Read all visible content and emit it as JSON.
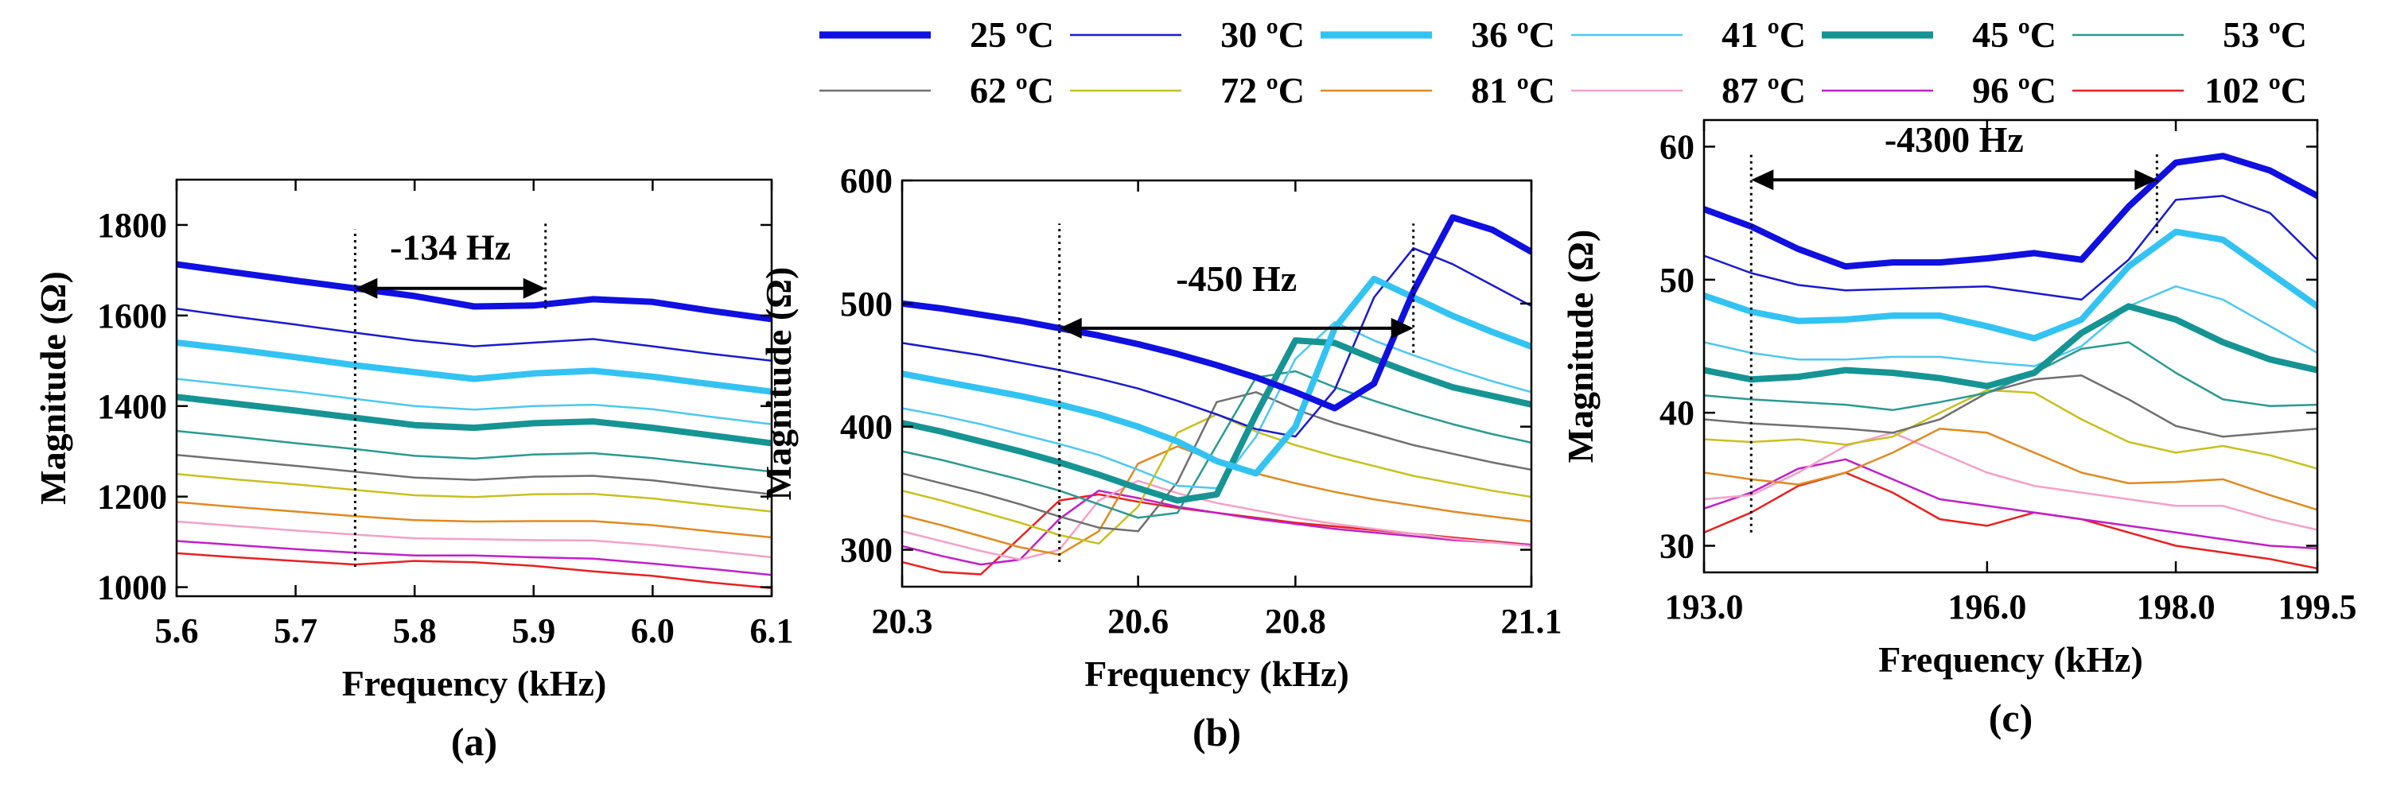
{
  "legend": {
    "position": "top",
    "entries": [
      {
        "label": "25 ºC",
        "color": "#1010e0",
        "weight": "thick"
      },
      {
        "label": "30 ºC",
        "color": "#1a1ad0",
        "weight": "thin"
      },
      {
        "label": "36 ºC",
        "color": "#33c3f2",
        "weight": "thick"
      },
      {
        "label": "41 ºC",
        "color": "#4cc8f0",
        "weight": "thin"
      },
      {
        "label": "45 ºC",
        "color": "#169494",
        "weight": "thick"
      },
      {
        "label": "53 ºC",
        "color": "#2a9a90",
        "weight": "thin"
      },
      {
        "label": "62 ºC",
        "color": "#707070",
        "weight": "thin"
      },
      {
        "label": "72 ºC",
        "color": "#c8c020",
        "weight": "thin"
      },
      {
        "label": "81 ºC",
        "color": "#e08a20",
        "weight": "thin"
      },
      {
        "label": "87 ºC",
        "color": "#f4a0c8",
        "weight": "thin"
      },
      {
        "label": "96 ºC",
        "color": "#c020c8",
        "weight": "thin"
      },
      {
        "label": "102 ºC",
        "color": "#e82020",
        "weight": "thin"
      }
    ]
  },
  "chart_data": [
    {
      "type": "line",
      "panel_label": "(a)",
      "xlabel": "Frequency (kHz)",
      "ylabel": "Magnitude (Ω)",
      "xlim": [
        5.6,
        6.1
      ],
      "ylim": [
        980,
        1900
      ],
      "xticks": [
        5.6,
        5.7,
        5.8,
        5.9,
        6.0,
        6.1
      ],
      "xtick_labels": [
        "5.6",
        "5.7",
        "5.8",
        "5.9",
        "6.0",
        "6.1"
      ],
      "yticks": [
        1000,
        1200,
        1400,
        1600,
        1800
      ],
      "ytick_labels": [
        "1000",
        "1200",
        "1400",
        "1600",
        "1800"
      ],
      "annotation": {
        "text": "-134 Hz",
        "x_from": 5.75,
        "x_to": 5.91,
        "y_arrow": 1660,
        "y_text": 1750,
        "vline_from_bottom": 1045,
        "vline_from_top": 1790,
        "vline_to_bottom": 1615,
        "vline_to_top": 1810
      },
      "x": [
        5.6,
        5.65,
        5.7,
        5.75,
        5.8,
        5.85,
        5.9,
        5.95,
        6.0,
        6.05,
        6.1
      ],
      "series": [
        {
          "name": "25 ºC",
          "values": [
            1713,
            1695,
            1677,
            1660,
            1643,
            1620,
            1622,
            1636,
            1630,
            1610,
            1592
          ]
        },
        {
          "name": "30 ºC",
          "values": [
            1615,
            1597,
            1580,
            1562,
            1545,
            1532,
            1540,
            1548,
            1532,
            1515,
            1500
          ]
        },
        {
          "name": "36 ºC",
          "values": [
            1540,
            1525,
            1508,
            1490,
            1475,
            1460,
            1472,
            1478,
            1465,
            1448,
            1432
          ]
        },
        {
          "name": "41 ºC",
          "values": [
            1460,
            1446,
            1432,
            1416,
            1400,
            1392,
            1400,
            1403,
            1393,
            1376,
            1360
          ]
        },
        {
          "name": "45 ºC",
          "values": [
            1420,
            1405,
            1390,
            1374,
            1358,
            1352,
            1362,
            1366,
            1352,
            1335,
            1318
          ]
        },
        {
          "name": "53 ºC",
          "values": [
            1345,
            1332,
            1318,
            1305,
            1290,
            1284,
            1293,
            1296,
            1285,
            1270,
            1255
          ]
        },
        {
          "name": "62 ºC",
          "values": [
            1292,
            1280,
            1268,
            1255,
            1242,
            1237,
            1244,
            1246,
            1236,
            1220,
            1205
          ]
        },
        {
          "name": "72 ºC",
          "values": [
            1250,
            1238,
            1227,
            1215,
            1203,
            1199,
            1205,
            1206,
            1196,
            1181,
            1167
          ]
        },
        {
          "name": "81 ºC",
          "values": [
            1188,
            1177,
            1167,
            1157,
            1148,
            1145,
            1146,
            1146,
            1137,
            1123,
            1110
          ]
        },
        {
          "name": "87 ºC",
          "values": [
            1145,
            1135,
            1125,
            1116,
            1108,
            1106,
            1104,
            1103,
            1093,
            1080,
            1066
          ]
        },
        {
          "name": "96 ºC",
          "values": [
            1102,
            1093,
            1084,
            1076,
            1070,
            1070,
            1066,
            1063,
            1052,
            1040,
            1027
          ]
        },
        {
          "name": "102 ºC",
          "values": [
            1075,
            1066,
            1058,
            1050,
            1058,
            1055,
            1047,
            1035,
            1025,
            1010,
            998
          ]
        }
      ]
    },
    {
      "type": "line",
      "panel_label": "(b)",
      "xlabel": "Frequency (kHz)",
      "ylabel": "Magnitude (Ω)",
      "xlim": [
        20.3,
        21.1
      ],
      "ylim": [
        270,
        600
      ],
      "xticks": [
        20.3,
        20.6,
        20.8,
        21.1
      ],
      "xtick_labels": [
        "20.3",
        "20.6",
        "20.8",
        "21.1"
      ],
      "yticks": [
        300,
        400,
        500,
        600
      ],
      "ytick_labels": [
        "300",
        "400",
        "500",
        "600"
      ],
      "annotation": {
        "text": "-450 Hz",
        "x_from": 20.5,
        "x_to": 20.95,
        "y_arrow": 480,
        "y_text": 520,
        "vline_from_bottom": 290,
        "vline_from_top": 565,
        "vline_to_bottom": 460,
        "vline_to_top": 565
      },
      "x": [
        20.3,
        20.35,
        20.4,
        20.45,
        20.5,
        20.55,
        20.6,
        20.65,
        20.7,
        20.75,
        20.8,
        20.85,
        20.9,
        20.95,
        21.0,
        21.05,
        21.1
      ],
      "series": [
        {
          "name": "25 ºC",
          "values": [
            500,
            496,
            491,
            486,
            480,
            474,
            467,
            459,
            450,
            440,
            428,
            415,
            435,
            510,
            570,
            560,
            542
          ]
        },
        {
          "name": "30 ºC",
          "values": [
            468,
            463,
            458,
            452,
            446,
            439,
            431,
            421,
            410,
            398,
            392,
            430,
            505,
            545,
            532,
            515,
            498
          ]
        },
        {
          "name": "36 ºC",
          "values": [
            443,
            437,
            431,
            425,
            418,
            410,
            400,
            388,
            372,
            362,
            400,
            480,
            520,
            505,
            490,
            477,
            465
          ]
        },
        {
          "name": "41 ºC",
          "values": [
            415,
            409,
            402,
            394,
            386,
            377,
            365,
            352,
            350,
            392,
            455,
            485,
            470,
            458,
            447,
            437,
            428
          ]
        },
        {
          "name": "45 ºC",
          "values": [
            403,
            396,
            388,
            380,
            371,
            361,
            350,
            340,
            345,
            410,
            470,
            468,
            455,
            443,
            432,
            425,
            418
          ]
        },
        {
          "name": "53 ºC",
          "values": [
            380,
            373,
            365,
            357,
            348,
            337,
            326,
            330,
            385,
            440,
            445,
            432,
            421,
            411,
            402,
            394,
            387
          ]
        },
        {
          "name": "62 ºC",
          "values": [
            362,
            354,
            346,
            337,
            327,
            318,
            315,
            355,
            420,
            428,
            414,
            403,
            394,
            385,
            378,
            371,
            365
          ]
        },
        {
          "name": "72 ºC",
          "values": [
            348,
            340,
            331,
            322,
            312,
            305,
            335,
            395,
            410,
            396,
            385,
            376,
            368,
            360,
            354,
            348,
            343
          ]
        },
        {
          "name": "81 ºC",
          "values": [
            328,
            320,
            311,
            302,
            296,
            315,
            370,
            384,
            372,
            362,
            354,
            347,
            341,
            336,
            331,
            327,
            323
          ]
        },
        {
          "name": "87 ºC",
          "values": [
            315,
            307,
            299,
            292,
            300,
            340,
            356,
            346,
            338,
            332,
            326,
            321,
            317,
            313,
            309,
            306,
            303
          ]
        },
        {
          "name": "96 ºC",
          "values": [
            303,
            295,
            288,
            292,
            325,
            348,
            342,
            335,
            330,
            325,
            321,
            317,
            314,
            311,
            308,
            306,
            304
          ]
        },
        {
          "name": "102 ºC",
          "values": [
            290,
            282,
            280,
            310,
            340,
            345,
            339,
            334,
            330,
            326,
            322,
            319,
            316,
            313,
            310,
            307,
            304
          ]
        }
      ]
    },
    {
      "type": "line",
      "panel_label": "(c)",
      "xlabel": "Frequency (kHz)",
      "ylabel": "Magnitude (Ω)",
      "xlim": [
        193.0,
        199.5
      ],
      "ylim": [
        28,
        62
      ],
      "xticks": [
        193.0,
        196.0,
        198.0,
        199.5
      ],
      "xtick_labels": [
        "193.0",
        "196.0",
        "198.0",
        "199.5"
      ],
      "yticks": [
        30,
        40,
        50,
        60
      ],
      "ytick_labels": [
        "30",
        "40",
        "50",
        "60"
      ],
      "annotation": {
        "text": "-4300 Hz",
        "x_from": 193.5,
        "x_to": 197.8,
        "y_arrow": 57.5,
        "y_text": 60.5,
        "vline_from_bottom": 31,
        "vline_from_top": 59.5,
        "vline_to_bottom": 53.5,
        "vline_to_top": 59.5
      },
      "x": [
        193.0,
        193.5,
        194.0,
        194.5,
        195.0,
        195.5,
        196.0,
        196.5,
        197.0,
        197.5,
        198.0,
        198.5,
        199.0,
        199.5
      ],
      "series": [
        {
          "name": "25 ºC",
          "values": [
            55.3,
            54.0,
            52.3,
            51.0,
            51.3,
            51.3,
            51.6,
            52.0,
            51.5,
            55.5,
            58.8,
            59.3,
            58.2,
            56.3
          ]
        },
        {
          "name": "30 ºC",
          "values": [
            51.8,
            50.5,
            49.6,
            49.2,
            49.3,
            49.4,
            49.5,
            49.0,
            48.5,
            51.5,
            56.0,
            56.3,
            55.0,
            51.5
          ]
        },
        {
          "name": "36 ºC",
          "values": [
            48.8,
            47.6,
            46.9,
            47.0,
            47.3,
            47.3,
            46.5,
            45.6,
            47.0,
            51.0,
            53.6,
            53.0,
            50.5,
            48.0
          ]
        },
        {
          "name": "41 ºC",
          "values": [
            45.3,
            44.5,
            44.0,
            44.0,
            44.2,
            44.2,
            43.8,
            43.5,
            45.0,
            48.0,
            49.5,
            48.5,
            46.5,
            44.5
          ]
        },
        {
          "name": "45 ºC",
          "values": [
            43.2,
            42.5,
            42.7,
            43.2,
            43.0,
            42.6,
            42.0,
            43.0,
            46.0,
            48.0,
            47.0,
            45.3,
            44.0,
            43.2
          ]
        },
        {
          "name": "53 ºC",
          "values": [
            41.3,
            41.0,
            40.8,
            40.6,
            40.2,
            40.8,
            41.5,
            43.0,
            44.8,
            45.3,
            43.0,
            41.0,
            40.5,
            40.6
          ]
        },
        {
          "name": "62 ºC",
          "values": [
            39.5,
            39.2,
            39.0,
            38.8,
            38.5,
            39.5,
            41.5,
            42.5,
            42.8,
            41.0,
            39.0,
            38.2,
            38.5,
            38.8
          ]
        },
        {
          "name": "72 ºC",
          "values": [
            38.0,
            37.8,
            38.0,
            37.6,
            38.2,
            40.0,
            41.7,
            41.5,
            39.5,
            37.8,
            37.0,
            37.5,
            36.8,
            35.8
          ]
        },
        {
          "name": "81 ºC",
          "values": [
            35.5,
            35.0,
            34.6,
            35.5,
            37.0,
            38.8,
            38.5,
            37.0,
            35.5,
            34.7,
            34.8,
            35.0,
            33.8,
            32.7
          ]
        },
        {
          "name": "87 ºC",
          "values": [
            33.5,
            33.8,
            35.5,
            37.5,
            38.5,
            37.0,
            35.5,
            34.5,
            34.0,
            33.5,
            33.0,
            33.0,
            32.0,
            31.2
          ]
        },
        {
          "name": "96 ºC",
          "values": [
            32.8,
            34.0,
            35.8,
            36.5,
            35.0,
            33.5,
            33.0,
            32.5,
            32.0,
            31.5,
            31.0,
            30.5,
            30.0,
            29.8
          ]
        },
        {
          "name": "102 ºC",
          "values": [
            31.0,
            32.5,
            34.5,
            35.5,
            34.0,
            32.0,
            31.5,
            32.5,
            32.0,
            31.0,
            30.0,
            29.5,
            29.0,
            28.3
          ]
        }
      ]
    }
  ]
}
